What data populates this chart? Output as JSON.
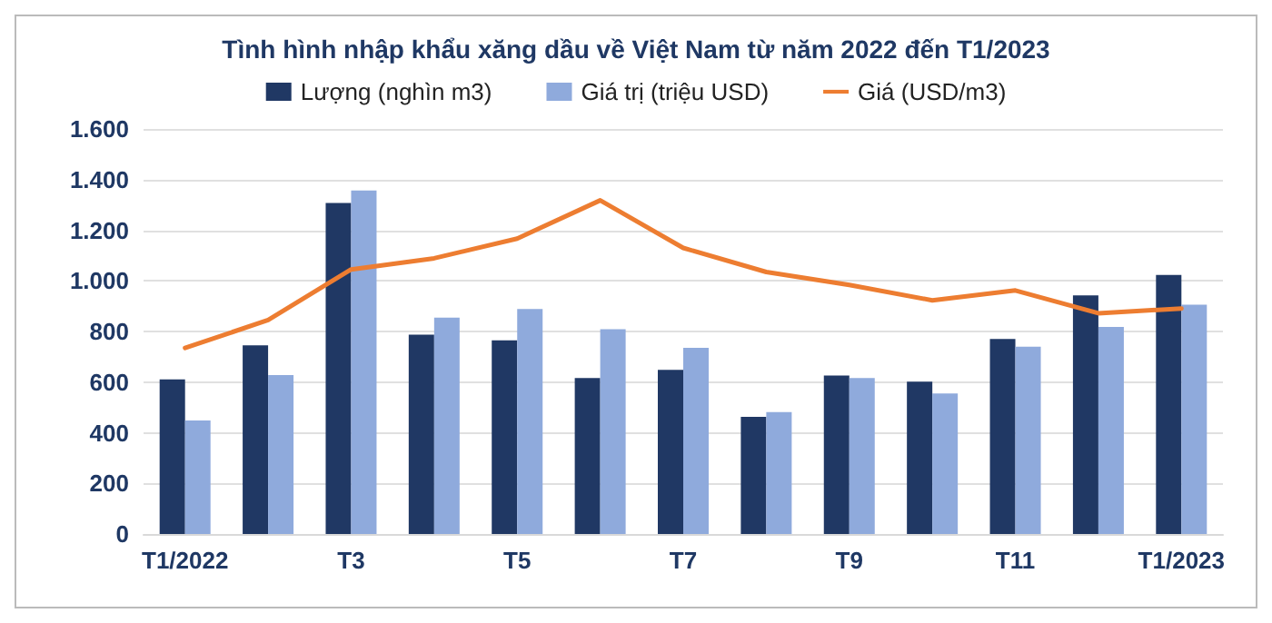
{
  "chart_data": {
    "type": "bar",
    "title": "Tình hình nhập khẩu xăng dầu về Việt Nam từ năm 2022 đến T1/2023",
    "categories": [
      "T1/2022",
      null,
      "T3",
      null,
      "T5",
      null,
      "T7",
      null,
      "T9",
      null,
      "T11",
      null,
      "T1/2023"
    ],
    "series": [
      {
        "name": "Lượng (nghìn m3)",
        "color": "#203864",
        "values": [
          611,
          745,
          1308,
          787,
          765,
          616,
          648,
          463,
          626,
          602,
          770,
          943,
          1023
        ]
      },
      {
        "name": "Giá trị (triệu USD)",
        "color": "#8faadc",
        "values": [
          448,
          628,
          1357,
          855,
          889,
          809,
          735,
          482,
          616,
          555,
          740,
          818,
          906
        ]
      },
      {
        "name": "Giá (USD/m3)",
        "type": "line",
        "color": "#ed7d31",
        "values": [
          735,
          845,
          1045,
          1089,
          1167,
          1318,
          1130,
          1035,
          984,
          923,
          962,
          872,
          891
        ]
      }
    ],
    "ylim": [
      0,
      1600
    ],
    "yticks": [
      0,
      200,
      400,
      600,
      800,
      {
        "value": 1000,
        "label": "1.000"
      },
      {
        "value": 1200,
        "label": "1.200"
      },
      {
        "value": 1400,
        "label": "1.400"
      },
      {
        "value": 1600,
        "label": "1.600"
      }
    ],
    "grid": "y",
    "legend": "top",
    "marker": "none",
    "line_style": "solid"
  }
}
